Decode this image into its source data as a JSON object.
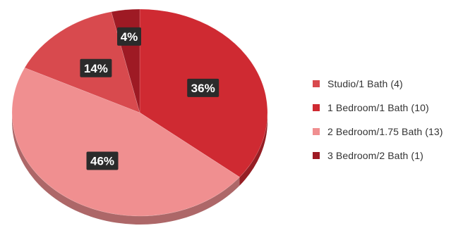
{
  "chart_data": {
    "type": "pie",
    "title": "",
    "categories": [
      "Studio/1 Bath (4)",
      "1 Bedroom/1 Bath (10)",
      "2 Bedroom/1.75 Bath (13)",
      "3 Bedroom/2 Bath (1)"
    ],
    "values": [
      4,
      10,
      13,
      1
    ],
    "labels": [
      "14%",
      "36%",
      "46%",
      "4%"
    ],
    "colors": [
      "#d84a4e",
      "#cf2a32",
      "#f08f90",
      "#9e1a24"
    ],
    "slice_order_clockwise_from_top": [
      1,
      2,
      0,
      3
    ],
    "legend_position": "right"
  },
  "legend": {
    "items": [
      {
        "label": "Studio/1 Bath (4)",
        "color": "#d84a4e"
      },
      {
        "label": "1 Bedroom/1 Bath (10)",
        "color": "#cf2a32"
      },
      {
        "label": "2 Bedroom/1.75 Bath (13)",
        "color": "#f08f90"
      },
      {
        "label": "3 Bedroom/2 Bath (1)",
        "color": "#9e1a24"
      }
    ]
  }
}
